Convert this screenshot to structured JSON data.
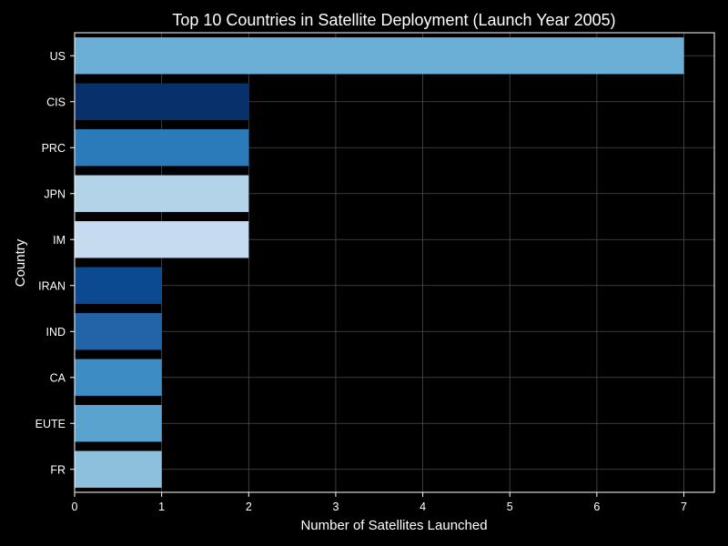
{
  "chart_data": {
    "type": "bar",
    "orientation": "horizontal",
    "title": "Top 10 Countries in Satellite Deployment (Launch Year 2005)",
    "xlabel": "Number of Satellites Launched",
    "ylabel": "Country",
    "categories": [
      "US",
      "CIS",
      "PRC",
      "JPN",
      "IM",
      "IRAN",
      "IND",
      "CA",
      "EUTE",
      "FR"
    ],
    "values": [
      7,
      2,
      2,
      2,
      2,
      1,
      1,
      1,
      1,
      1
    ],
    "colors": [
      "#6baed6",
      "#08306b",
      "#2b7bba",
      "#b3d3e8",
      "#c6dbef",
      "#0b4a91",
      "#2363a7",
      "#3d8dc4",
      "#5ba3cf",
      "#8cc0dd"
    ],
    "xlim": [
      0,
      7.35
    ],
    "xticks": [
      "0",
      "1",
      "2",
      "3",
      "4",
      "5",
      "6",
      "7"
    ],
    "grid": true,
    "theme": "dark"
  }
}
